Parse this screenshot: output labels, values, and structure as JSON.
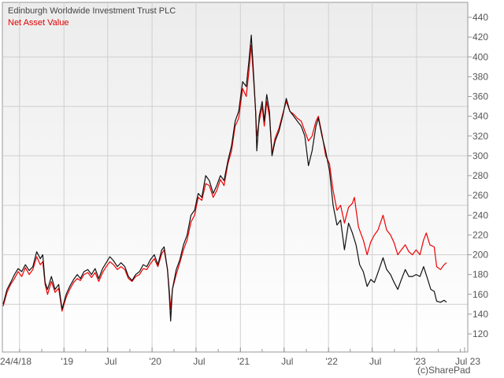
{
  "chart_data": {
    "type": "line",
    "title": "",
    "xlabel": "",
    "ylabel": "",
    "x_range": [
      "2018-04-24",
      "2023-07-24"
    ],
    "ylim": [
      110,
      450
    ],
    "y_ticks": [
      120,
      140,
      160,
      180,
      200,
      220,
      240,
      260,
      280,
      300,
      320,
      340,
      360,
      380,
      400,
      420,
      440
    ],
    "x_ticks": [
      {
        "date": "2018-04-24",
        "label": "24/4/18"
      },
      {
        "date": "2019-01-01",
        "label": "'19"
      },
      {
        "date": "2019-07-01",
        "label": "Jul"
      },
      {
        "date": "2020-01-01",
        "label": "'20"
      },
      {
        "date": "2020-07-01",
        "label": "Jul"
      },
      {
        "date": "2021-01-01",
        "label": "'21"
      },
      {
        "date": "2021-07-01",
        "label": "Jul"
      },
      {
        "date": "2022-01-01",
        "label": "'22"
      },
      {
        "date": "2022-07-01",
        "label": "Jul"
      },
      {
        "date": "2023-01-01",
        "label": "'23"
      },
      {
        "date": "2023-07-24",
        "label": "Jul 23"
      }
    ],
    "legend_placement": "top-left",
    "grid": true,
    "series": [
      {
        "name": "Edinburgh Worldwide Investment Trust PLC",
        "color": "#111111",
        "points": [
          [
            "2018-04-24",
            150
          ],
          [
            "2018-05-10",
            165
          ],
          [
            "2018-05-25",
            172
          ],
          [
            "2018-06-10",
            180
          ],
          [
            "2018-06-25",
            186
          ],
          [
            "2018-07-10",
            183
          ],
          [
            "2018-07-25",
            190
          ],
          [
            "2018-08-10",
            184
          ],
          [
            "2018-08-25",
            188
          ],
          [
            "2018-09-10",
            203
          ],
          [
            "2018-09-25",
            196
          ],
          [
            "2018-10-05",
            200
          ],
          [
            "2018-10-15",
            172
          ],
          [
            "2018-10-25",
            165
          ],
          [
            "2018-11-10",
            178
          ],
          [
            "2018-11-25",
            165
          ],
          [
            "2018-12-10",
            170
          ],
          [
            "2018-12-24",
            145
          ],
          [
            "2019-01-10",
            160
          ],
          [
            "2019-01-25",
            168
          ],
          [
            "2019-02-10",
            175
          ],
          [
            "2019-02-25",
            180
          ],
          [
            "2019-03-10",
            176
          ],
          [
            "2019-03-25",
            183
          ],
          [
            "2019-04-10",
            185
          ],
          [
            "2019-04-25",
            180
          ],
          [
            "2019-05-10",
            186
          ],
          [
            "2019-05-25",
            176
          ],
          [
            "2019-06-10",
            186
          ],
          [
            "2019-06-25",
            192
          ],
          [
            "2019-07-10",
            198
          ],
          [
            "2019-07-25",
            194
          ],
          [
            "2019-08-10",
            188
          ],
          [
            "2019-08-25",
            192
          ],
          [
            "2019-09-10",
            188
          ],
          [
            "2019-09-25",
            178
          ],
          [
            "2019-10-10",
            174
          ],
          [
            "2019-10-25",
            180
          ],
          [
            "2019-11-10",
            183
          ],
          [
            "2019-11-25",
            190
          ],
          [
            "2019-12-10",
            188
          ],
          [
            "2019-12-25",
            195
          ],
          [
            "2020-01-10",
            200
          ],
          [
            "2020-01-25",
            190
          ],
          [
            "2020-02-10",
            205
          ],
          [
            "2020-02-20",
            208
          ],
          [
            "2020-03-05",
            185
          ],
          [
            "2020-03-12",
            160
          ],
          [
            "2020-03-18",
            133
          ],
          [
            "2020-03-25",
            165
          ],
          [
            "2020-04-10",
            185
          ],
          [
            "2020-04-25",
            195
          ],
          [
            "2020-05-10",
            210
          ],
          [
            "2020-05-25",
            220
          ],
          [
            "2020-06-10",
            240
          ],
          [
            "2020-06-25",
            245
          ],
          [
            "2020-07-10",
            262
          ],
          [
            "2020-07-25",
            258
          ],
          [
            "2020-08-10",
            280
          ],
          [
            "2020-08-25",
            275
          ],
          [
            "2020-09-10",
            262
          ],
          [
            "2020-09-25",
            270
          ],
          [
            "2020-10-10",
            280
          ],
          [
            "2020-10-25",
            275
          ],
          [
            "2020-11-10",
            295
          ],
          [
            "2020-11-25",
            310
          ],
          [
            "2020-12-10",
            335
          ],
          [
            "2020-12-25",
            345
          ],
          [
            "2021-01-10",
            375
          ],
          [
            "2021-01-25",
            370
          ],
          [
            "2021-02-05",
            395
          ],
          [
            "2021-02-15",
            422
          ],
          [
            "2021-02-25",
            380
          ],
          [
            "2021-03-05",
            345
          ],
          [
            "2021-03-10",
            305
          ],
          [
            "2021-03-20",
            340
          ],
          [
            "2021-04-01",
            355
          ],
          [
            "2021-04-10",
            335
          ],
          [
            "2021-04-20",
            362
          ],
          [
            "2021-05-01",
            345
          ],
          [
            "2021-05-12",
            300
          ],
          [
            "2021-05-25",
            315
          ],
          [
            "2021-06-10",
            325
          ],
          [
            "2021-06-25",
            340
          ],
          [
            "2021-07-10",
            358
          ],
          [
            "2021-07-25",
            345
          ],
          [
            "2021-08-10",
            340
          ],
          [
            "2021-08-25",
            335
          ],
          [
            "2021-09-10",
            330
          ],
          [
            "2021-09-25",
            320
          ],
          [
            "2021-10-10",
            290
          ],
          [
            "2021-10-25",
            305
          ],
          [
            "2021-11-10",
            330
          ],
          [
            "2021-11-20",
            338
          ],
          [
            "2021-12-05",
            320
          ],
          [
            "2021-12-20",
            305
          ],
          [
            "2022-01-05",
            285
          ],
          [
            "2022-01-20",
            250
          ],
          [
            "2022-02-05",
            230
          ],
          [
            "2022-02-20",
            235
          ],
          [
            "2022-03-08",
            205
          ],
          [
            "2022-03-25",
            232
          ],
          [
            "2022-04-10",
            222
          ],
          [
            "2022-04-25",
            210
          ],
          [
            "2022-05-10",
            190
          ],
          [
            "2022-05-25",
            183
          ],
          [
            "2022-06-10",
            168
          ],
          [
            "2022-06-25",
            175
          ],
          [
            "2022-07-10",
            172
          ],
          [
            "2022-07-25",
            182
          ],
          [
            "2022-08-15",
            197
          ],
          [
            "2022-08-30",
            185
          ],
          [
            "2022-09-15",
            180
          ],
          [
            "2022-09-30",
            172
          ],
          [
            "2022-10-15",
            165
          ],
          [
            "2022-10-30",
            175
          ],
          [
            "2022-11-15",
            185
          ],
          [
            "2022-11-30",
            178
          ],
          [
            "2022-12-15",
            178
          ],
          [
            "2022-12-30",
            180
          ],
          [
            "2023-01-15",
            178
          ],
          [
            "2023-01-30",
            188
          ],
          [
            "2023-02-15",
            176
          ],
          [
            "2023-03-01",
            165
          ],
          [
            "2023-03-15",
            163
          ],
          [
            "2023-03-25",
            153
          ],
          [
            "2023-04-10",
            152
          ],
          [
            "2023-04-25",
            154
          ],
          [
            "2023-05-05",
            152
          ]
        ]
      },
      {
        "name": "Net Asset Value",
        "color": "#ee0000",
        "points": [
          [
            "2018-04-24",
            148
          ],
          [
            "2018-05-10",
            162
          ],
          [
            "2018-05-25",
            170
          ],
          [
            "2018-06-10",
            176
          ],
          [
            "2018-06-25",
            183
          ],
          [
            "2018-07-10",
            178
          ],
          [
            "2018-07-25",
            187
          ],
          [
            "2018-08-10",
            180
          ],
          [
            "2018-08-25",
            185
          ],
          [
            "2018-09-10",
            198
          ],
          [
            "2018-09-25",
            190
          ],
          [
            "2018-10-05",
            193
          ],
          [
            "2018-10-15",
            170
          ],
          [
            "2018-10-25",
            160
          ],
          [
            "2018-11-10",
            173
          ],
          [
            "2018-11-25",
            162
          ],
          [
            "2018-12-10",
            166
          ],
          [
            "2018-12-24",
            143
          ],
          [
            "2019-01-10",
            157
          ],
          [
            "2019-01-25",
            165
          ],
          [
            "2019-02-10",
            172
          ],
          [
            "2019-02-25",
            176
          ],
          [
            "2019-03-10",
            174
          ],
          [
            "2019-03-25",
            180
          ],
          [
            "2019-04-10",
            182
          ],
          [
            "2019-04-25",
            177
          ],
          [
            "2019-05-10",
            182
          ],
          [
            "2019-05-25",
            173
          ],
          [
            "2019-06-10",
            182
          ],
          [
            "2019-06-25",
            188
          ],
          [
            "2019-07-10",
            193
          ],
          [
            "2019-07-25",
            190
          ],
          [
            "2019-08-10",
            185
          ],
          [
            "2019-08-25",
            188
          ],
          [
            "2019-09-10",
            185
          ],
          [
            "2019-09-25",
            176
          ],
          [
            "2019-10-10",
            173
          ],
          [
            "2019-10-25",
            178
          ],
          [
            "2019-11-10",
            180
          ],
          [
            "2019-11-25",
            186
          ],
          [
            "2019-12-10",
            185
          ],
          [
            "2019-12-25",
            191
          ],
          [
            "2020-01-10",
            196
          ],
          [
            "2020-01-25",
            188
          ],
          [
            "2020-02-10",
            201
          ],
          [
            "2020-02-20",
            205
          ],
          [
            "2020-03-05",
            185
          ],
          [
            "2020-03-12",
            165
          ],
          [
            "2020-03-18",
            145
          ],
          [
            "2020-03-25",
            165
          ],
          [
            "2020-04-10",
            180
          ],
          [
            "2020-04-25",
            192
          ],
          [
            "2020-05-10",
            205
          ],
          [
            "2020-05-25",
            215
          ],
          [
            "2020-06-10",
            233
          ],
          [
            "2020-06-25",
            240
          ],
          [
            "2020-07-10",
            258
          ],
          [
            "2020-07-25",
            255
          ],
          [
            "2020-08-10",
            272
          ],
          [
            "2020-08-25",
            270
          ],
          [
            "2020-09-10",
            258
          ],
          [
            "2020-09-25",
            265
          ],
          [
            "2020-10-10",
            276
          ],
          [
            "2020-10-25",
            270
          ],
          [
            "2020-11-10",
            292
          ],
          [
            "2020-11-25",
            305
          ],
          [
            "2020-12-10",
            330
          ],
          [
            "2020-12-25",
            338
          ],
          [
            "2021-01-10",
            368
          ],
          [
            "2021-01-25",
            360
          ],
          [
            "2021-02-05",
            385
          ],
          [
            "2021-02-15",
            412
          ],
          [
            "2021-02-25",
            375
          ],
          [
            "2021-03-05",
            345
          ],
          [
            "2021-03-10",
            320
          ],
          [
            "2021-03-20",
            335
          ],
          [
            "2021-04-01",
            350
          ],
          [
            "2021-04-10",
            330
          ],
          [
            "2021-04-20",
            355
          ],
          [
            "2021-05-01",
            340
          ],
          [
            "2021-05-12",
            302
          ],
          [
            "2021-05-25",
            318
          ],
          [
            "2021-06-10",
            328
          ],
          [
            "2021-06-25",
            342
          ],
          [
            "2021-07-10",
            355
          ],
          [
            "2021-07-25",
            345
          ],
          [
            "2021-08-10",
            342
          ],
          [
            "2021-08-25",
            338
          ],
          [
            "2021-09-10",
            335
          ],
          [
            "2021-09-25",
            325
          ],
          [
            "2021-10-10",
            315
          ],
          [
            "2021-10-25",
            320
          ],
          [
            "2021-11-10",
            335
          ],
          [
            "2021-11-20",
            340
          ],
          [
            "2021-12-05",
            322
          ],
          [
            "2021-12-20",
            300
          ],
          [
            "2022-01-05",
            292
          ],
          [
            "2022-01-20",
            265
          ],
          [
            "2022-02-05",
            245
          ],
          [
            "2022-02-20",
            250
          ],
          [
            "2022-03-08",
            232
          ],
          [
            "2022-03-25",
            248
          ],
          [
            "2022-04-10",
            252
          ],
          [
            "2022-04-18",
            258
          ],
          [
            "2022-05-05",
            228
          ],
          [
            "2022-05-25",
            215
          ],
          [
            "2022-06-10",
            200
          ],
          [
            "2022-06-25",
            213
          ],
          [
            "2022-07-10",
            220
          ],
          [
            "2022-07-25",
            225
          ],
          [
            "2022-08-15",
            240
          ],
          [
            "2022-08-30",
            225
          ],
          [
            "2022-09-15",
            220
          ],
          [
            "2022-09-30",
            212
          ],
          [
            "2022-10-15",
            200
          ],
          [
            "2022-10-30",
            205
          ],
          [
            "2022-11-15",
            210
          ],
          [
            "2022-11-30",
            203
          ],
          [
            "2022-12-15",
            200
          ],
          [
            "2022-12-30",
            205
          ],
          [
            "2023-01-15",
            200
          ],
          [
            "2023-01-30",
            215
          ],
          [
            "2023-02-10",
            222
          ],
          [
            "2023-02-25",
            210
          ],
          [
            "2023-03-15",
            208
          ],
          [
            "2023-03-25",
            188
          ],
          [
            "2023-04-10",
            185
          ],
          [
            "2023-04-25",
            190
          ],
          [
            "2023-05-05",
            192
          ]
        ]
      }
    ],
    "credit": "(c)SharePad"
  }
}
